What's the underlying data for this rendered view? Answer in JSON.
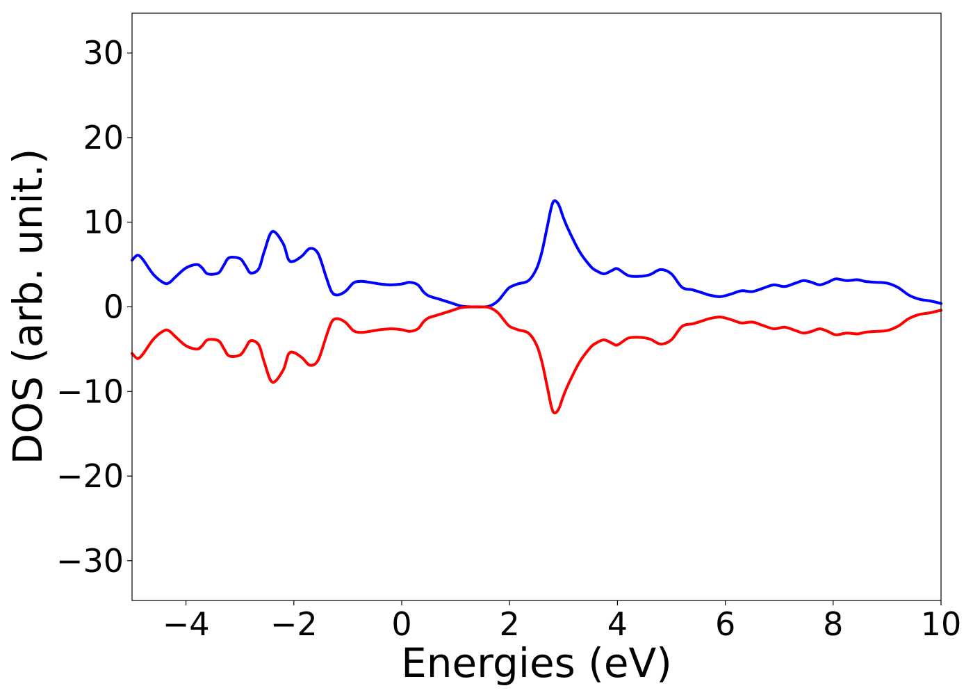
{
  "chart_data": {
    "type": "line",
    "title": "",
    "xlabel": "Energies (eV)",
    "ylabel": "DOS (arb. unit.)",
    "xlim": [
      -5,
      10
    ],
    "ylim": [
      -34.7,
      34.7
    ],
    "xticks": [
      -4,
      -2,
      0,
      2,
      4,
      6,
      8,
      10
    ],
    "xtick_labels": [
      "−4",
      "−2",
      "0",
      "2",
      "4",
      "6",
      "8",
      "10"
    ],
    "yticks": [
      30,
      20,
      10,
      0,
      -10,
      -20,
      -30
    ],
    "ytick_labels": [
      "30",
      "20",
      "10",
      "0",
      "−10",
      "−20",
      "−30"
    ],
    "grid": false,
    "legend": "none",
    "series": [
      {
        "color": "#0000ff",
        "x": [
          -5.0,
          -4.9,
          -4.8,
          -4.6,
          -4.4,
          -4.3,
          -4.2,
          -4.0,
          -3.8,
          -3.7,
          -3.6,
          -3.4,
          -3.3,
          -3.2,
          -3.0,
          -2.9,
          -2.8,
          -2.65,
          -2.55,
          -2.4,
          -2.2,
          -2.1,
          -2.0,
          -1.85,
          -1.7,
          -1.55,
          -1.4,
          -1.3,
          -1.2,
          -1.05,
          -0.9,
          -0.8,
          -0.7,
          -0.5,
          -0.4,
          -0.2,
          0.0,
          0.15,
          0.3,
          0.4,
          0.5,
          0.7,
          0.9,
          1.1,
          1.3,
          1.5,
          1.6,
          1.7,
          1.8,
          1.9,
          2.0,
          2.15,
          2.35,
          2.5,
          2.6,
          2.7,
          2.8,
          2.9,
          3.0,
          3.1,
          3.3,
          3.5,
          3.6,
          3.75,
          3.9,
          4.0,
          4.2,
          4.4,
          4.6,
          4.8,
          5.0,
          5.2,
          5.4,
          5.6,
          5.7,
          5.9,
          6.1,
          6.3,
          6.5,
          6.7,
          6.9,
          7.1,
          7.3,
          7.45,
          7.6,
          7.75,
          7.9,
          8.05,
          8.25,
          8.45,
          8.6,
          8.8,
          9.0,
          9.2,
          9.4,
          9.6,
          9.8,
          10.0
        ],
        "y": [
          5.5,
          6.1,
          5.6,
          3.8,
          2.8,
          2.9,
          3.5,
          4.6,
          5.0,
          4.6,
          3.9,
          4.0,
          4.9,
          5.8,
          5.7,
          4.9,
          4.0,
          4.5,
          6.5,
          8.9,
          7.5,
          5.6,
          5.4,
          6.0,
          6.9,
          6.3,
          3.5,
          1.8,
          1.4,
          1.8,
          2.8,
          3.0,
          3.0,
          2.8,
          2.7,
          2.6,
          2.7,
          2.9,
          2.6,
          1.8,
          1.3,
          0.9,
          0.5,
          0.1,
          0.0,
          0.0,
          0.05,
          0.3,
          0.8,
          1.6,
          2.3,
          2.7,
          3.1,
          4.5,
          6.5,
          9.5,
          12.3,
          12.2,
          10.5,
          9.0,
          6.5,
          4.8,
          4.3,
          3.9,
          4.3,
          4.5,
          3.7,
          3.6,
          3.8,
          4.4,
          3.9,
          2.3,
          2.0,
          1.6,
          1.4,
          1.2,
          1.5,
          1.9,
          1.8,
          2.2,
          2.6,
          2.4,
          2.8,
          3.1,
          2.9,
          2.6,
          2.9,
          3.3,
          3.1,
          3.2,
          3.0,
          2.9,
          2.8,
          2.3,
          1.4,
          0.9,
          0.7,
          0.4
        ]
      },
      {
        "color": "#ff0000",
        "x": [
          -5.0,
          -4.9,
          -4.8,
          -4.6,
          -4.4,
          -4.3,
          -4.2,
          -4.0,
          -3.8,
          -3.7,
          -3.6,
          -3.4,
          -3.3,
          -3.2,
          -3.0,
          -2.9,
          -2.8,
          -2.65,
          -2.55,
          -2.4,
          -2.2,
          -2.1,
          -2.0,
          -1.85,
          -1.7,
          -1.55,
          -1.4,
          -1.3,
          -1.2,
          -1.05,
          -0.9,
          -0.8,
          -0.7,
          -0.5,
          -0.4,
          -0.2,
          0.0,
          0.15,
          0.3,
          0.4,
          0.5,
          0.7,
          0.9,
          1.1,
          1.3,
          1.5,
          1.6,
          1.7,
          1.8,
          1.9,
          2.0,
          2.15,
          2.35,
          2.5,
          2.6,
          2.7,
          2.8,
          2.9,
          3.0,
          3.1,
          3.3,
          3.5,
          3.6,
          3.75,
          3.9,
          4.0,
          4.2,
          4.4,
          4.6,
          4.8,
          5.0,
          5.2,
          5.4,
          5.6,
          5.7,
          5.9,
          6.1,
          6.3,
          6.5,
          6.7,
          6.9,
          7.1,
          7.3,
          7.45,
          7.6,
          7.75,
          7.9,
          8.05,
          8.25,
          8.45,
          8.6,
          8.8,
          9.0,
          9.2,
          9.4,
          9.6,
          9.8,
          10.0
        ],
        "y": [
          -5.5,
          -6.1,
          -5.6,
          -3.8,
          -2.8,
          -2.9,
          -3.5,
          -4.6,
          -5.0,
          -4.6,
          -3.9,
          -4.0,
          -4.9,
          -5.8,
          -5.7,
          -4.9,
          -4.0,
          -4.5,
          -6.5,
          -8.9,
          -7.5,
          -5.6,
          -5.4,
          -6.0,
          -6.9,
          -6.3,
          -3.5,
          -1.8,
          -1.4,
          -1.8,
          -2.8,
          -3.0,
          -3.0,
          -2.8,
          -2.7,
          -2.6,
          -2.7,
          -2.9,
          -2.6,
          -1.8,
          -1.3,
          -0.9,
          -0.5,
          -0.1,
          0.0,
          0.0,
          -0.05,
          -0.3,
          -0.8,
          -1.6,
          -2.3,
          -2.7,
          -3.1,
          -4.5,
          -6.5,
          -9.5,
          -12.3,
          -12.2,
          -10.5,
          -9.0,
          -6.5,
          -4.8,
          -4.3,
          -3.9,
          -4.3,
          -4.5,
          -3.7,
          -3.6,
          -3.8,
          -4.4,
          -3.9,
          -2.3,
          -2.0,
          -1.6,
          -1.4,
          -1.2,
          -1.5,
          -1.9,
          -1.8,
          -2.2,
          -2.6,
          -2.4,
          -2.8,
          -3.1,
          -2.9,
          -2.6,
          -2.9,
          -3.3,
          -3.1,
          -3.2,
          -3.0,
          -2.9,
          -2.8,
          -2.3,
          -1.4,
          -0.9,
          -0.7,
          -0.4
        ]
      }
    ]
  }
}
